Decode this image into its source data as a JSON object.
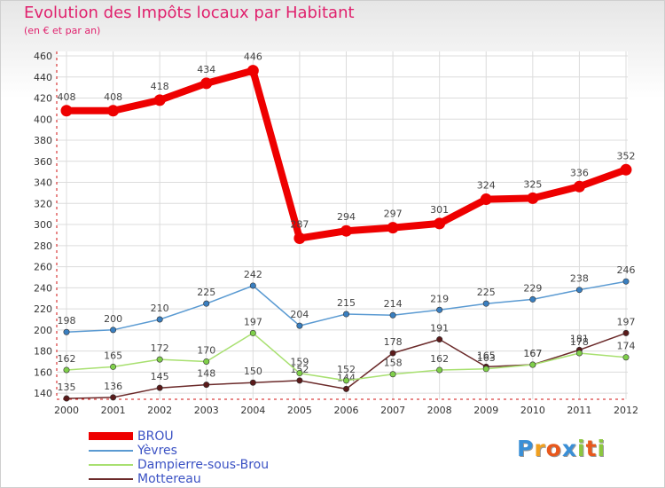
{
  "header": {
    "title": "Evolution des Impôts locaux par Habitant",
    "subtitle": "(en € et par an)"
  },
  "brand": {
    "text": "Proxiti",
    "letters": [
      {
        "ch": "P",
        "color": "#3a8fd6"
      },
      {
        "ch": "r",
        "color": "#f0a020"
      },
      {
        "ch": "o",
        "color": "#e8581c"
      },
      {
        "ch": "x",
        "color": "#3a8fd6"
      },
      {
        "ch": "i",
        "color": "#8cc63f"
      },
      {
        "ch": "t",
        "color": "#e8581c"
      },
      {
        "ch": "i",
        "color": "#8cc63f"
      }
    ]
  },
  "chart_data": {
    "type": "line",
    "title": "Evolution des Impôts locaux par Habitant",
    "subtitle": "(en € et par an)",
    "xlabel": "",
    "ylabel": "",
    "ylim": [
      130,
      460
    ],
    "yticks": [
      140,
      160,
      180,
      200,
      220,
      240,
      260,
      280,
      300,
      320,
      340,
      360,
      380,
      400,
      420,
      440,
      460
    ],
    "grid": true,
    "legend_position": "bottom-left",
    "categories": [
      "2000",
      "2001",
      "2002",
      "2003",
      "2004",
      "2005",
      "2006",
      "2007",
      "2008",
      "2009",
      "2010",
      "2011",
      "2012"
    ],
    "series": [
      {
        "name": "BROU",
        "color": "#ee0000",
        "emphasis": true,
        "values": [
          408,
          408,
          418,
          434,
          446,
          287,
          294,
          297,
          301,
          324,
          325,
          336,
          352
        ],
        "labels": [
          "408",
          "408",
          "418",
          "434",
          "446",
          "287",
          "294",
          "297",
          "301",
          "324",
          "325",
          "336",
          "352"
        ]
      },
      {
        "name": "Yèvres",
        "color": "#5a9ad2",
        "marker_fill": "#3a7fc0",
        "values": [
          198,
          200,
          210,
          225,
          242,
          204,
          215,
          214,
          219,
          225,
          229,
          238,
          246
        ],
        "labels": [
          "198",
          "200",
          "210",
          "225",
          "242",
          "204",
          "215",
          "214",
          "219",
          "225",
          "229",
          "238",
          "246"
        ]
      },
      {
        "name": "Dampierre-sous-Brou",
        "color": "#a8e070",
        "marker_fill": "#7fcf4a",
        "values": [
          162,
          165,
          172,
          170,
          197,
          159,
          152,
          158,
          162,
          163,
          167,
          178,
          174
        ],
        "labels": [
          "162",
          "165",
          "172",
          "170",
          "197",
          "159",
          "152",
          "158",
          "162",
          "163",
          "167",
          "178",
          "174"
        ]
      },
      {
        "name": "Mottereau",
        "color": "#6b2a2a",
        "marker_fill": "#5a1a1a",
        "values": [
          135,
          136,
          145,
          148,
          150,
          152,
          144,
          178,
          191,
          165,
          167,
          181,
          197
        ],
        "labels": [
          "135",
          "136",
          "145",
          "148",
          "150",
          "152",
          "144",
          "178",
          "191",
          "165",
          "167",
          "181",
          "197"
        ]
      }
    ]
  }
}
